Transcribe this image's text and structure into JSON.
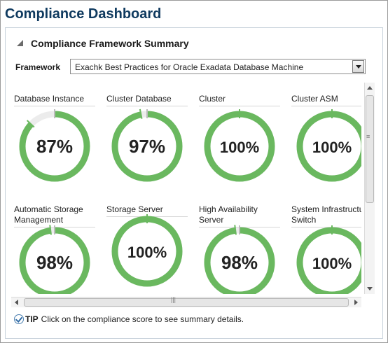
{
  "app_title": "Compliance Dashboard",
  "section": {
    "title": "Compliance Framework Summary"
  },
  "framework": {
    "label": "Framework",
    "selected": "Exachk Best Practices for Oracle Exadata Database Machine"
  },
  "colors": {
    "ring": "#6ab85f",
    "ring_track": "#ececec",
    "marker": "#bdbdbd",
    "title": "#0f3a5f"
  },
  "cards": [
    {
      "label": "Database Instance",
      "score_text": "87%",
      "score": 87
    },
    {
      "label": "Cluster Database",
      "score_text": "97%",
      "score": 97
    },
    {
      "label": "Cluster",
      "score_text": "100%",
      "score": 100
    },
    {
      "label": "Cluster ASM",
      "score_text": "100%",
      "score": 100
    },
    {
      "label": "Automatic Storage Management",
      "score_text": "98%",
      "score": 98
    },
    {
      "label": "Storage Server",
      "score_text": "100%",
      "score": 100
    },
    {
      "label": "High Availability Server",
      "score_text": "98%",
      "score": 98
    },
    {
      "label": "System Infrastructure Switch",
      "score_text": "100%",
      "score": 100
    }
  ],
  "tip": {
    "label": "TIP",
    "text": "Click on the compliance score to see summary details."
  }
}
